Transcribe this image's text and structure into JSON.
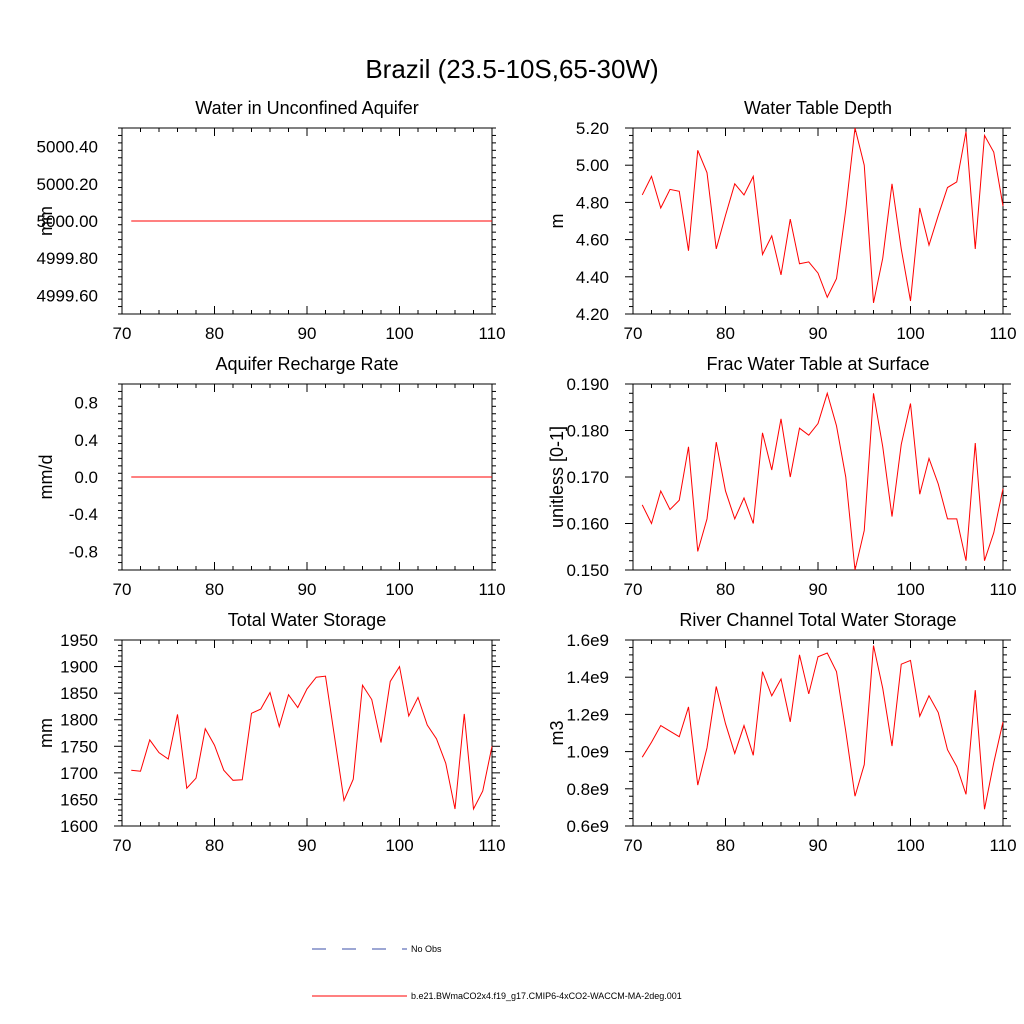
{
  "figure_title": "Brazil (23.5-10S,65-30W)",
  "chart_data": [
    {
      "type": "line",
      "title": "Water in Unconfined Aquifer",
      "ylabel": "mm",
      "xlim": [
        70,
        110
      ],
      "ylim": [
        4999.5,
        5000.5
      ],
      "xticks": [
        70,
        80,
        90,
        100,
        110
      ],
      "yticks": [
        4999.6,
        4999.8,
        5000.0,
        5000.2,
        5000.4
      ],
      "ytick_labels": [
        "4999.60",
        "4999.80",
        "5000.00",
        "5000.20",
        "5000.40"
      ],
      "x": [
        71,
        110
      ],
      "series": [
        {
          "name": "b.e21.BWmaCO2x4.f19_g17.CMIP6-4xCO2-WACCM-MA-2deg.001",
          "values": [
            5000.0,
            5000.0
          ]
        }
      ]
    },
    {
      "type": "line",
      "title": "Water Table Depth",
      "ylabel": "m",
      "xlim": [
        70,
        110
      ],
      "ylim": [
        4.2,
        5.2
      ],
      "xticks": [
        70,
        80,
        90,
        100,
        110
      ],
      "yticks": [
        4.2,
        4.4,
        4.6,
        4.8,
        5.0,
        5.2
      ],
      "ytick_labels": [
        "4.20",
        "4.40",
        "4.60",
        "4.80",
        "5.00",
        "5.20"
      ],
      "x": [
        71,
        72,
        73,
        74,
        75,
        76,
        77,
        78,
        79,
        80,
        81,
        82,
        83,
        84,
        85,
        86,
        87,
        88,
        89,
        90,
        91,
        92,
        93,
        94,
        95,
        96,
        97,
        98,
        99,
        100,
        101,
        102,
        103,
        104,
        105,
        106,
        107,
        108,
        109,
        110
      ],
      "series": [
        {
          "name": "b.e21.BWmaCO2x4.f19_g17.CMIP6-4xCO2-WACCM-MA-2deg.001",
          "values": [
            4.84,
            4.94,
            4.77,
            4.87,
            4.86,
            4.54,
            5.08,
            4.96,
            4.55,
            4.73,
            4.9,
            4.84,
            4.94,
            4.52,
            4.62,
            4.41,
            4.71,
            4.47,
            4.48,
            4.42,
            4.29,
            4.39,
            4.76,
            5.2,
            5.0,
            4.26,
            4.5,
            4.9,
            4.55,
            4.27,
            4.77,
            4.57,
            4.73,
            4.88,
            4.91,
            5.18,
            4.55,
            5.16,
            5.07,
            4.78
          ]
        }
      ]
    },
    {
      "type": "line",
      "title": "Aquifer Recharge Rate",
      "ylabel": "mm/d",
      "xlim": [
        70,
        110
      ],
      "ylim": [
        -1.0,
        1.0
      ],
      "xticks": [
        70,
        80,
        90,
        100,
        110
      ],
      "yticks": [
        -0.8,
        -0.4,
        0.0,
        0.4,
        0.8
      ],
      "ytick_labels": [
        "-0.8",
        "-0.4",
        "0.0",
        "0.4",
        "0.8"
      ],
      "x": [
        71,
        110
      ],
      "series": [
        {
          "name": "b.e21.BWmaCO2x4.f19_g17.CMIP6-4xCO2-WACCM-MA-2deg.001",
          "values": [
            0.0,
            0.0
          ]
        }
      ]
    },
    {
      "type": "line",
      "title": "Frac Water Table at Surface",
      "ylabel": "unitless [0-1]",
      "xlim": [
        70,
        110
      ],
      "ylim": [
        0.15,
        0.19
      ],
      "xticks": [
        70,
        80,
        90,
        100,
        110
      ],
      "yticks": [
        0.15,
        0.16,
        0.17,
        0.18,
        0.19
      ],
      "ytick_labels": [
        "0.150",
        "0.160",
        "0.170",
        "0.180",
        "0.190"
      ],
      "x": [
        71,
        72,
        73,
        74,
        75,
        76,
        77,
        78,
        79,
        80,
        81,
        82,
        83,
        84,
        85,
        86,
        87,
        88,
        89,
        90,
        91,
        92,
        93,
        94,
        95,
        96,
        97,
        98,
        99,
        100,
        101,
        102,
        103,
        104,
        105,
        106,
        107,
        108,
        109,
        110
      ],
      "series": [
        {
          "name": "b.e21.BWmaCO2x4.f19_g17.CMIP6-4xCO2-WACCM-MA-2deg.001",
          "values": [
            0.164,
            0.16,
            0.167,
            0.163,
            0.165,
            0.1765,
            0.154,
            0.161,
            0.1775,
            0.167,
            0.161,
            0.1655,
            0.16,
            0.1795,
            0.1715,
            0.1825,
            0.17,
            0.1805,
            0.179,
            0.1815,
            0.188,
            0.181,
            0.17,
            0.15,
            0.1585,
            0.188,
            0.1765,
            0.1615,
            0.177,
            0.1858,
            0.1663,
            0.174,
            0.1685,
            0.161,
            0.161,
            0.152,
            0.1773,
            0.152,
            0.158,
            0.1675
          ]
        }
      ]
    },
    {
      "type": "line",
      "title": "Total Water Storage",
      "ylabel": "mm",
      "xlim": [
        70,
        110
      ],
      "ylim": [
        1600,
        1950
      ],
      "xticks": [
        70,
        80,
        90,
        100,
        110
      ],
      "yticks": [
        1600,
        1650,
        1700,
        1750,
        1800,
        1850,
        1900,
        1950
      ],
      "ytick_labels": [
        "1600",
        "1650",
        "1700",
        "1750",
        "1800",
        "1850",
        "1900",
        "1950"
      ],
      "x": [
        71,
        72,
        73,
        74,
        75,
        76,
        77,
        78,
        79,
        80,
        81,
        82,
        83,
        84,
        85,
        86,
        87,
        88,
        89,
        90,
        91,
        92,
        93,
        94,
        95,
        96,
        97,
        98,
        99,
        100,
        101,
        102,
        103,
        104,
        105,
        106,
        107,
        108,
        109,
        110
      ],
      "series": [
        {
          "name": "b.e21.BWmaCO2x4.f19_g17.CMIP6-4xCO2-WACCM-MA-2deg.001",
          "values": [
            1705,
            1703,
            1762,
            1738,
            1726,
            1810,
            1671,
            1690,
            1783,
            1752,
            1705,
            1686,
            1687,
            1812,
            1820,
            1851,
            1787,
            1847,
            1823,
            1858,
            1880,
            1882,
            1765,
            1648,
            1688,
            1865,
            1838,
            1757,
            1872,
            1900,
            1807,
            1842,
            1790,
            1764,
            1718,
            1632,
            1811,
            1632,
            1666,
            1750
          ]
        }
      ]
    },
    {
      "type": "line",
      "title": "River Channel Total Water Storage",
      "ylabel": "m3",
      "xlim": [
        70,
        110
      ],
      "ylim": [
        0.6,
        1.6
      ],
      "xticks": [
        70,
        80,
        90,
        100,
        110
      ],
      "yticks": [
        0.6,
        0.8,
        1.0,
        1.2,
        1.4,
        1.6
      ],
      "ytick_labels": [
        "0.6e9",
        "0.8e9",
        "1.0e9",
        "1.2e9",
        "1.4e9",
        "1.6e9"
      ],
      "x": [
        71,
        72,
        73,
        74,
        75,
        76,
        77,
        78,
        79,
        80,
        81,
        82,
        83,
        84,
        85,
        86,
        87,
        88,
        89,
        90,
        91,
        92,
        93,
        94,
        95,
        96,
        97,
        98,
        99,
        100,
        101,
        102,
        103,
        104,
        105,
        106,
        107,
        108,
        109,
        110
      ],
      "series": [
        {
          "name": "b.e21.BWmaCO2x4.f19_g17.CMIP6-4xCO2-WACCM-MA-2deg.001",
          "values": [
            0.97,
            1.05,
            1.14,
            1.11,
            1.08,
            1.24,
            0.82,
            1.02,
            1.35,
            1.15,
            0.99,
            1.14,
            0.98,
            1.43,
            1.3,
            1.39,
            1.16,
            1.52,
            1.31,
            1.51,
            1.53,
            1.43,
            1.11,
            0.76,
            0.93,
            1.57,
            1.34,
            1.03,
            1.47,
            1.49,
            1.19,
            1.3,
            1.21,
            1.01,
            0.92,
            0.77,
            1.33,
            0.69,
            0.94,
            1.16
          ]
        }
      ]
    }
  ],
  "legend": {
    "placement": "bottom-center",
    "entries": [
      {
        "label": "No Obs",
        "style": "dashed",
        "color": "#3b4fa8"
      },
      {
        "label": "b.e21.BWmaCO2x4.f19_g17.CMIP6-4xCO2-WACCM-MA-2deg.001",
        "style": "solid",
        "color": "#ff0000"
      }
    ]
  },
  "colors": {
    "series": "#ff0000",
    "axis": "#000000",
    "obs": "#3b4fa8"
  }
}
